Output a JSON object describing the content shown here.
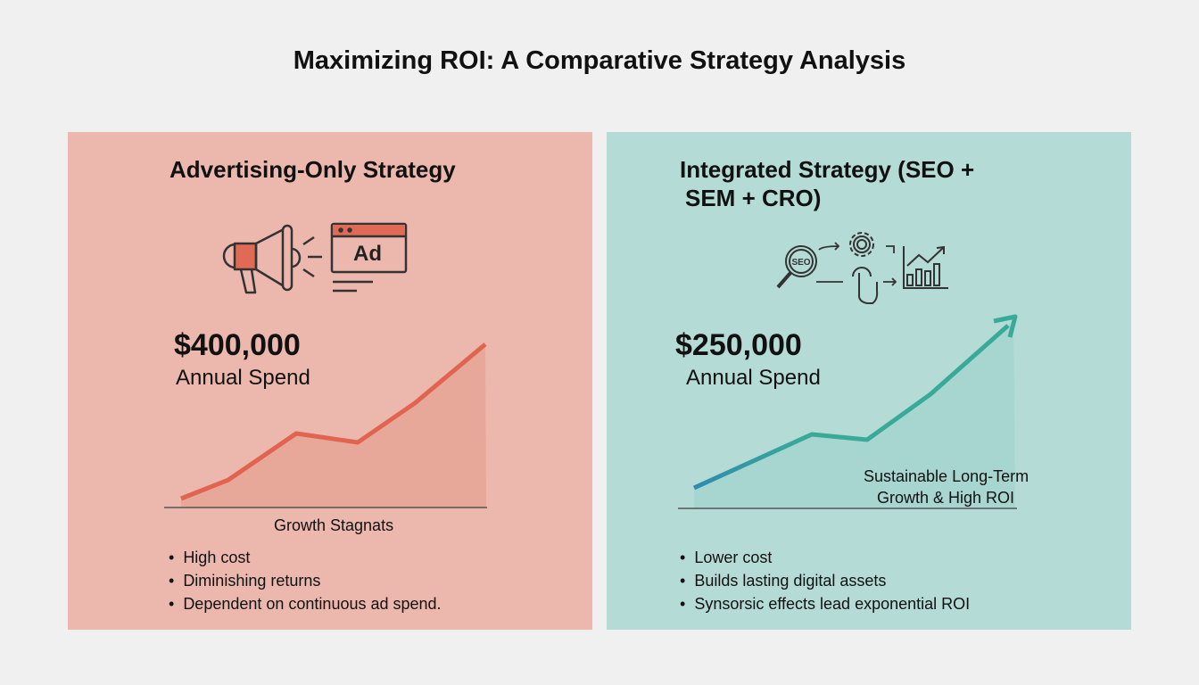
{
  "title": "Maximizing ROI: A Comparative Strategy Analysis",
  "left": {
    "heading": "Advertising-Only Strategy",
    "icon_ad_text": "Ad",
    "amount": "$400,000",
    "amount_label": "Annual Spend",
    "chart_caption": "Growth Stagnats",
    "bullets": [
      "High cost",
      "Diminishing returns",
      "Dependent on continuous ad spend."
    ],
    "color": "#e06450"
  },
  "right": {
    "heading_line1": "Integrated Strategy (SEO +",
    "heading_line2": "SEM + CRO)",
    "icon_seo_text": "SEO",
    "amount": "$250,000",
    "amount_label": "Annual Spend",
    "chart_caption_line1": "Sustainable Long-Term",
    "chart_caption_line2": "Growth & High ROI",
    "bullets": [
      "Lower cost",
      "Builds lasting digital assets",
      "Synsorsic effects lead exponential ROI"
    ],
    "color": "#3aaa98"
  }
}
